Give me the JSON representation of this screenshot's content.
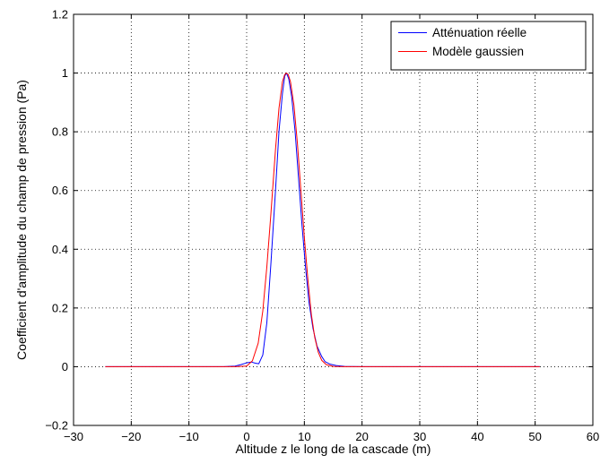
{
  "chart_data": {
    "type": "line",
    "title": "",
    "xlabel": "Altitude z le long de la cascade (m)",
    "ylabel": "Coefficient d'amplitude du champ de pression (Pa)",
    "xlim": [
      -30,
      60
    ],
    "ylim": [
      -0.2,
      1.2
    ],
    "xticks": [
      -30,
      -20,
      -10,
      0,
      10,
      20,
      30,
      40,
      50,
      60
    ],
    "yticks": [
      -0.2,
      0,
      0.2,
      0.4,
      0.6,
      0.8,
      1,
      1.2
    ],
    "xtick_labels": [
      "−30",
      "−20",
      "−10",
      "0",
      "10",
      "20",
      "30",
      "40",
      "50",
      "60"
    ],
    "ytick_labels": [
      "−0.2",
      "0",
      "0.2",
      "0.4",
      "0.6",
      "0.8",
      "1",
      "1.2"
    ],
    "grid": true,
    "legend_position": "top-right",
    "series": [
      {
        "name": "Atténuation réelle",
        "color": "#0000ff",
        "x": [
          -24.5,
          -10,
          -4,
          -2,
          -1,
          0,
          0.8,
          1.5,
          2.1,
          2.8,
          3.5,
          4.2,
          5,
          5.6,
          6.2,
          6.6,
          6.9,
          7.3,
          7.8,
          8.4,
          9,
          9.6,
          10.2,
          10.8,
          11.5,
          12.2,
          13,
          13.6,
          14.4,
          15.5,
          17,
          20,
          30,
          40,
          50.8
        ],
        "y": [
          0,
          0,
          0,
          0.002,
          0.007,
          0.013,
          0.016,
          0.012,
          0.01,
          0.04,
          0.15,
          0.35,
          0.6,
          0.8,
          0.93,
          0.99,
          1.0,
          0.98,
          0.92,
          0.8,
          0.64,
          0.48,
          0.34,
          0.22,
          0.13,
          0.07,
          0.035,
          0.017,
          0.009,
          0.004,
          0.001,
          0,
          0,
          0,
          0
        ]
      },
      {
        "name": "Modèle gaussien",
        "color": "#ff0000",
        "x": [
          -24.5,
          -10,
          -2,
          0,
          1,
          2,
          2.8,
          3.5,
          4.2,
          5,
          5.6,
          6.2,
          6.6,
          6.9,
          7.2,
          7.6,
          8.2,
          8.8,
          9.4,
          10,
          10.6,
          11.2,
          11.8,
          12.4,
          13,
          13.8,
          15,
          17,
          20,
          30,
          40,
          50.8
        ],
        "y": [
          0,
          0,
          0,
          0.002,
          0.02,
          0.08,
          0.19,
          0.34,
          0.52,
          0.74,
          0.88,
          0.97,
          0.995,
          1.0,
          0.995,
          0.97,
          0.89,
          0.76,
          0.6,
          0.44,
          0.3,
          0.18,
          0.1,
          0.05,
          0.022,
          0.007,
          0.001,
          0,
          0,
          0,
          0,
          0
        ]
      }
    ]
  }
}
